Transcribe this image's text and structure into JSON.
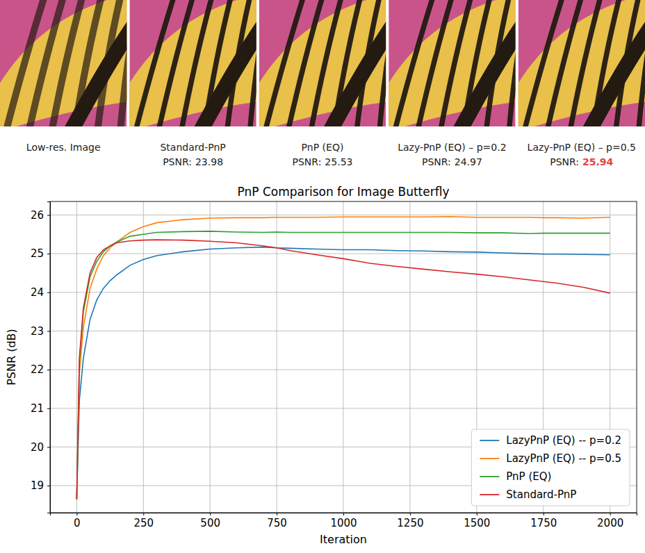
{
  "panels": [
    {
      "title": "Low-res. Image"
    },
    {
      "title": "Standard-PnP",
      "metric_label": "PSNR:",
      "metric": 23.98
    },
    {
      "title": "PnP (EQ)",
      "metric_label": "PSNR:",
      "metric": 25.53
    },
    {
      "title": "Lazy-PnP (EQ) – p=0.2",
      "metric_label": "PSNR:",
      "metric": 24.97
    },
    {
      "title": "Lazy-PnP (EQ) – p=0.5",
      "metric_label": "PSNR:",
      "metric": 25.94,
      "color": "#e8413c"
    }
  ],
  "chart_data": {
    "type": "line",
    "title": "PnP Comparison for Image Butterfly",
    "x_label": "Iteration",
    "y_label": "PSNR (dB)",
    "x": [
      0,
      10,
      25,
      50,
      75,
      100,
      125,
      150,
      200,
      250,
      300,
      400,
      500,
      600,
      700,
      750,
      800,
      900,
      1000,
      1100,
      1200,
      1300,
      1400,
      1500,
      1600,
      1700,
      1750,
      1800,
      1900,
      2000
    ],
    "series": [
      {
        "name": "LazyPnP (EQ) -- p=0.2",
        "color": "#1f77b4",
        "values": [
          18.65,
          21.2,
          22.3,
          23.3,
          23.8,
          24.1,
          24.3,
          24.45,
          24.7,
          24.85,
          24.95,
          25.05,
          25.12,
          25.15,
          25.17,
          25.15,
          25.14,
          25.12,
          25.1,
          25.1,
          25.08,
          25.07,
          25.05,
          25.04,
          25.02,
          25.0,
          24.99,
          24.99,
          24.98,
          24.97
        ]
      },
      {
        "name": "LazyPnP (EQ) -- p=0.5",
        "color": "#ff7f0e",
        "values": [
          18.65,
          21.9,
          23.1,
          24.1,
          24.6,
          24.95,
          25.15,
          25.3,
          25.55,
          25.7,
          25.8,
          25.88,
          25.92,
          25.93,
          25.93,
          25.94,
          25.94,
          25.94,
          25.95,
          25.95,
          25.95,
          25.95,
          25.96,
          25.94,
          25.94,
          25.94,
          25.93,
          25.93,
          25.92,
          25.94
        ]
      },
      {
        "name": "PnP (EQ)",
        "color": "#2ca02c",
        "values": [
          18.65,
          22.2,
          23.5,
          24.4,
          24.8,
          25.05,
          25.2,
          25.3,
          25.45,
          25.5,
          25.55,
          25.57,
          25.58,
          25.56,
          25.55,
          25.56,
          25.55,
          25.55,
          25.55,
          25.55,
          25.55,
          25.55,
          25.55,
          25.54,
          25.54,
          25.52,
          25.53,
          25.53,
          25.53,
          25.53
        ]
      },
      {
        "name": "Standard-PnP",
        "color": "#d62728",
        "values": [
          18.65,
          22.3,
          23.6,
          24.5,
          24.9,
          25.1,
          25.2,
          25.28,
          25.33,
          25.35,
          25.36,
          25.35,
          25.32,
          25.28,
          25.2,
          25.15,
          25.08,
          24.97,
          24.87,
          24.75,
          24.67,
          24.6,
          24.53,
          24.47,
          24.4,
          24.32,
          24.28,
          24.24,
          24.13,
          23.98
        ]
      }
    ],
    "xlim": [
      -100,
      2100
    ],
    "xticks": [
      0,
      250,
      500,
      750,
      1000,
      1250,
      1500,
      1750,
      2000
    ],
    "ylim": [
      18.3,
      26.35
    ],
    "yticks": [
      19,
      20,
      21,
      22,
      23,
      24,
      25,
      26
    ],
    "grid": true,
    "legend": "lower right"
  }
}
